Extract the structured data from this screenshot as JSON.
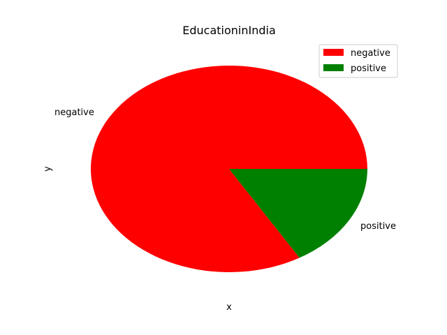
{
  "chart_data": {
    "type": "pie",
    "title": "EducationinIndia",
    "xlabel": "x",
    "ylabel": "y",
    "slices": [
      {
        "label": "negative",
        "value": 83.5,
        "color": "#ff0000"
      },
      {
        "label": "positive",
        "value": 16.5,
        "color": "#008000"
      }
    ],
    "legend": {
      "placement": "top-right",
      "entries": [
        "negative",
        "positive"
      ]
    }
  }
}
